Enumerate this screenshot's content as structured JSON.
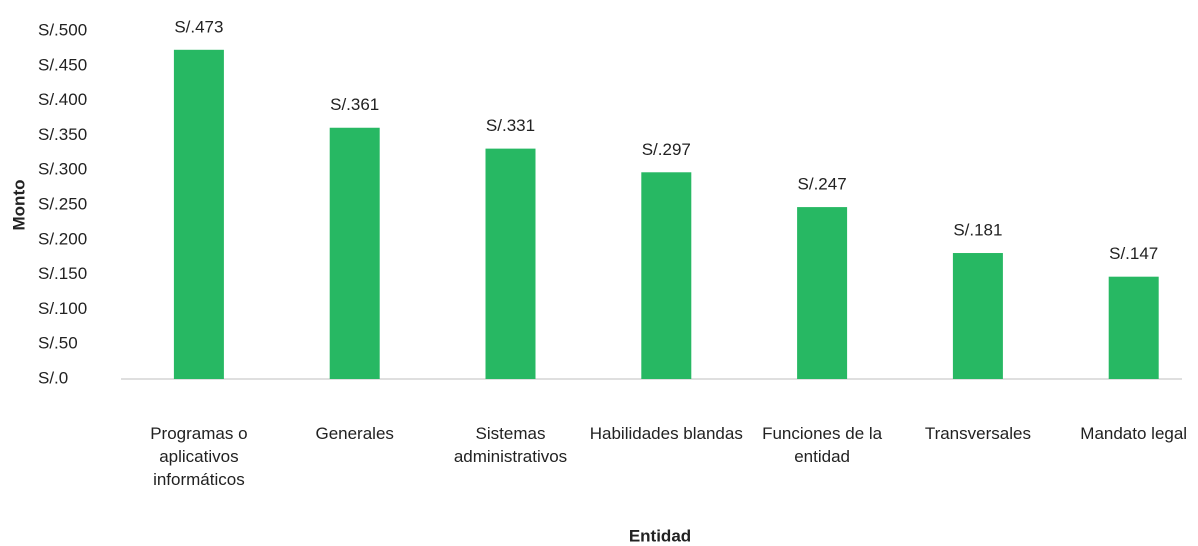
{
  "chart_data": {
    "type": "bar",
    "x_label": "Entidad",
    "y_label": "Monto",
    "categories": [
      "Programas o aplicativos informáticos",
      "Generales",
      "Sistemas administrativos",
      "Habilidades blandas",
      "Funciones de la entidad",
      "Transversales",
      "Mandato legal"
    ],
    "values": [
      473,
      361,
      331,
      297,
      247,
      181,
      147
    ],
    "value_labels": [
      "S/.473",
      "S/.361",
      "S/.331",
      "S/.297",
      "S/.247",
      "S/.181",
      "S/.147"
    ],
    "color": "#27b863",
    "ylim": [
      0,
      500
    ],
    "yticks": [
      {
        "value": 0,
        "label": "S/.0"
      },
      {
        "value": 50,
        "label": "S/.50"
      },
      {
        "value": 100,
        "label": "S/.100"
      },
      {
        "value": 150,
        "label": "S/.150"
      },
      {
        "value": 200,
        "label": "S/.200"
      },
      {
        "value": 250,
        "label": "S/.250"
      },
      {
        "value": 300,
        "label": "S/.300"
      },
      {
        "value": 350,
        "label": "S/.350"
      },
      {
        "value": 400,
        "label": "S/.400"
      },
      {
        "value": 450,
        "label": "S/.450"
      },
      {
        "value": 500,
        "label": "S/.500"
      }
    ],
    "grid": false
  }
}
